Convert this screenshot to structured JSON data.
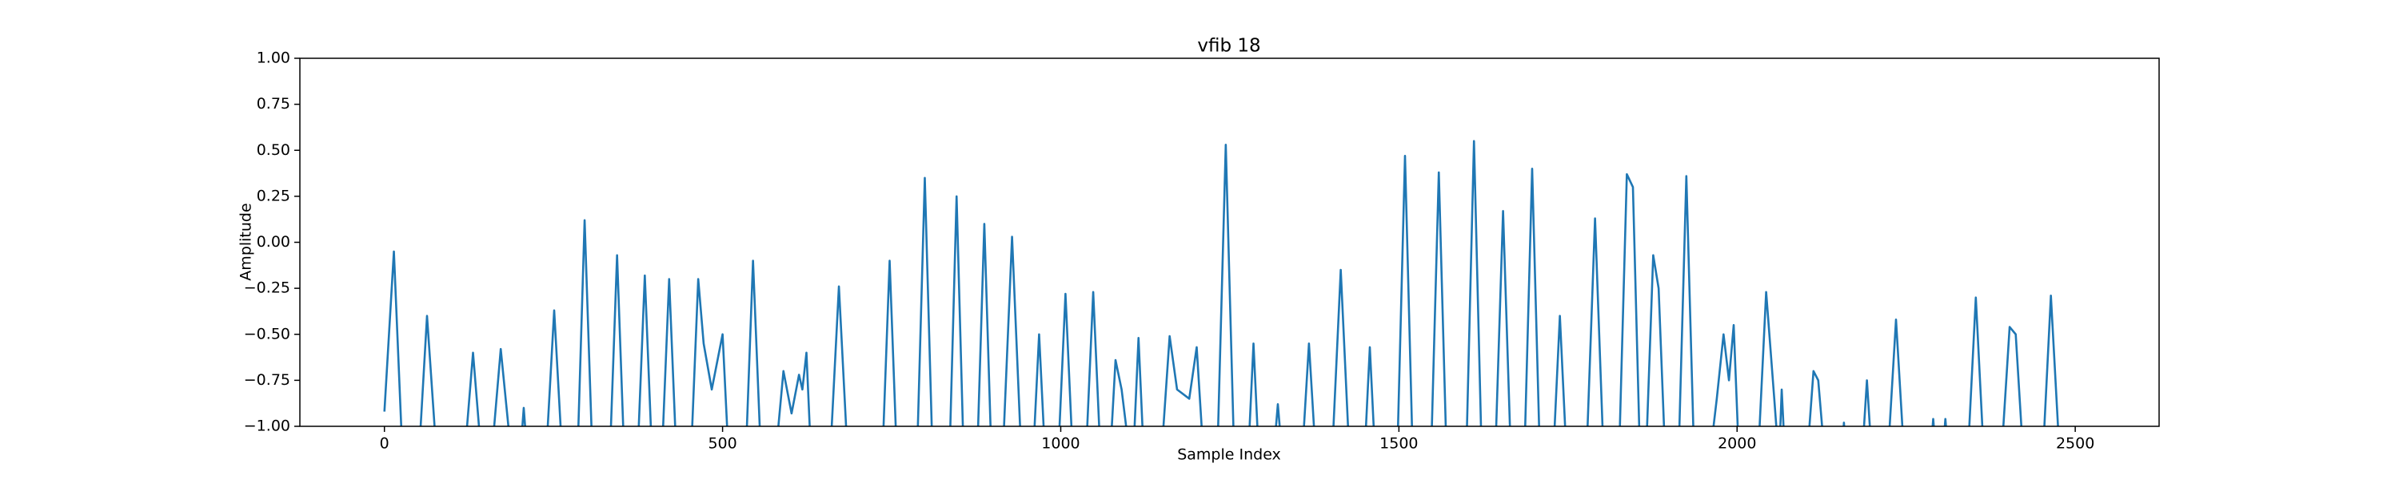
{
  "chart_data": {
    "type": "line",
    "title": "vfib 18",
    "x_label": "Sample Index",
    "y_label": "Amplitude",
    "color": "#1f77b4",
    "xlim": [
      -125,
      2624
    ],
    "ylim": [
      -1,
      1
    ],
    "xticks": [
      0,
      500,
      1000,
      1500,
      2000,
      2500
    ],
    "yticks": [
      {
        "value": -1,
        "label": "−1.00"
      },
      {
        "value": -0.75,
        "label": "−0.75"
      },
      {
        "value": -0.5,
        "label": "−0.50"
      },
      {
        "value": -0.25,
        "label": "−0.25"
      },
      {
        "value": 0,
        "label": "0.00"
      },
      {
        "value": 0.25,
        "label": "0.25"
      },
      {
        "value": 0.5,
        "label": "0.50"
      },
      {
        "value": 0.75,
        "label": "0.75"
      },
      {
        "value": 1,
        "label": "1.00"
      }
    ],
    "x": [
      0,
      14,
      26,
      52,
      63,
      76,
      120,
      131,
      142,
      160,
      172,
      186,
      202,
      206,
      210,
      240,
      251,
      262,
      286,
      296,
      307,
      334,
      344,
      354,
      375,
      385,
      395,
      411,
      421,
      431,
      454,
      464,
      472,
      484,
      500,
      508,
      535,
      545,
      556,
      580,
      590,
      602,
      613,
      618,
      624,
      630,
      660,
      672,
      684,
      737,
      747,
      757,
      788,
      799,
      810,
      836,
      846,
      856,
      877,
      887,
      897,
      915,
      928,
      941,
      960,
      968,
      976,
      997,
      1007,
      1017,
      1038,
      1048,
      1058,
      1074,
      1081,
      1090,
      1100,
      1108,
      1115,
      1122,
      1150,
      1161,
      1172,
      1190,
      1201,
      1210,
      1232,
      1244,
      1256,
      1278,
      1285,
      1292,
      1316,
      1321,
      1326,
      1358,
      1367,
      1376,
      1402,
      1414,
      1426,
      1450,
      1457,
      1464,
      1498,
      1509,
      1520,
      1548,
      1559,
      1570,
      1600,
      1611,
      1622,
      1643,
      1654,
      1665,
      1686,
      1697,
      1708,
      1729,
      1738,
      1747,
      1778,
      1790,
      1802,
      1826,
      1837,
      1846,
      1856,
      1866,
      1876,
      1884,
      1893,
      1914,
      1925,
      1936,
      1962,
      1970,
      1980,
      1988,
      1995,
      2002,
      2032,
      2043,
      2055,
      2060,
      2063,
      2066,
      2070,
      2105,
      2113,
      2120,
      2128,
      2156,
      2158,
      2160,
      2186,
      2192,
      2198,
      2224,
      2235,
      2246,
      2287,
      2290,
      2293,
      2305,
      2308,
      2311,
      2342,
      2353,
      2364,
      2392,
      2403,
      2412,
      2422,
      2453,
      2464,
      2476,
      2499
    ],
    "values": [
      -0.92,
      -0.05,
      -1.1,
      -1.1,
      -0.4,
      -1.1,
      -1.1,
      -0.6,
      -1.1,
      -1.1,
      -0.58,
      -1.1,
      -1.1,
      -0.9,
      -1.1,
      -1.1,
      -0.37,
      -1.1,
      -1.1,
      0.12,
      -1.1,
      -1.1,
      -0.07,
      -1.1,
      -1.1,
      -0.18,
      -1.1,
      -1.1,
      -0.2,
      -1.1,
      -1.1,
      -0.2,
      -0.55,
      -0.8,
      -0.5,
      -1.1,
      -1.1,
      -0.1,
      -1.1,
      -1.1,
      -0.7,
      -0.93,
      -0.72,
      -0.8,
      -0.6,
      -1.1,
      -1.1,
      -0.24,
      -1.1,
      -1.1,
      -0.1,
      -1.1,
      -1.1,
      0.35,
      -1.1,
      -1.1,
      0.25,
      -1.1,
      -1.1,
      0.1,
      -1.1,
      -1.1,
      0.03,
      -1.1,
      -1.1,
      -0.5,
      -1.1,
      -1.1,
      -0.28,
      -1.1,
      -1.1,
      -0.27,
      -1.1,
      -1.1,
      -0.64,
      -0.8,
      -1.1,
      -1.1,
      -0.52,
      -1.1,
      -1.1,
      -0.51,
      -0.8,
      -0.85,
      -0.57,
      -1.1,
      -1.1,
      0.53,
      -1.1,
      -1.1,
      -0.55,
      -1.1,
      -1.1,
      -0.88,
      -1.1,
      -1.1,
      -0.55,
      -1.1,
      -1.1,
      -0.15,
      -1.1,
      -1.1,
      -0.57,
      -1.1,
      -1.1,
      0.47,
      -1.1,
      -1.1,
      0.38,
      -1.1,
      -1.1,
      0.55,
      -1.1,
      -1.1,
      0.17,
      -1.1,
      -1.1,
      0.4,
      -1.1,
      -1.1,
      -0.4,
      -1.1,
      -1.1,
      0.13,
      -1.1,
      -1.1,
      0.37,
      0.3,
      -1.1,
      -1.1,
      -0.07,
      -0.25,
      -1.1,
      -1.1,
      0.36,
      -1.1,
      -1.1,
      -0.85,
      -0.5,
      -0.75,
      -0.45,
      -1.1,
      -1.1,
      -0.27,
      -0.85,
      -1.1,
      -1.1,
      -0.8,
      -1.1,
      -1.1,
      -0.7,
      -0.75,
      -1.1,
      -1.1,
      -0.98,
      -1.1,
      -1.1,
      -0.75,
      -1.1,
      -1.1,
      -0.42,
      -1.1,
      -1.1,
      -0.96,
      -1.1,
      -1.1,
      -0.96,
      -1.1,
      -1.1,
      -0.3,
      -1.1,
      -1.1,
      -0.46,
      -0.5,
      -1.1,
      -1.1,
      -0.29,
      -1.1,
      -1.0
    ]
  }
}
